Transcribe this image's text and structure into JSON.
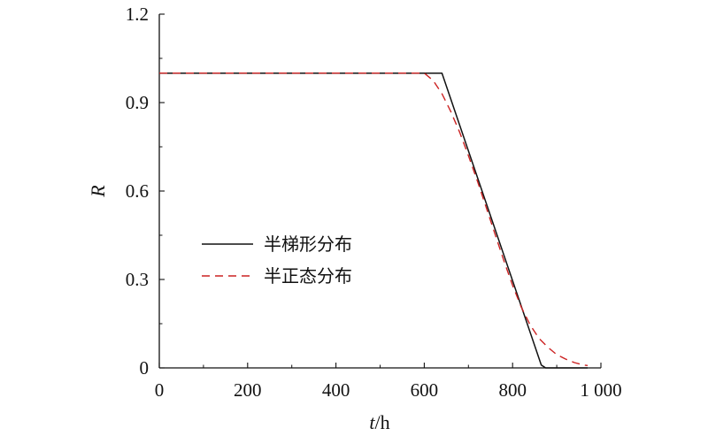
{
  "chart_data": {
    "type": "line",
    "title": "",
    "xlabel": {
      "italic": "t",
      "rest": "/h"
    },
    "ylabel": "R",
    "xlim": [
      0,
      1000
    ],
    "ylim": [
      0,
      1.2
    ],
    "x_ticks": [
      0,
      200,
      400,
      600,
      800,
      1000
    ],
    "x_tick_labels": [
      "0",
      "200",
      "400",
      "600",
      "800",
      "1 000"
    ],
    "y_ticks": [
      0,
      0.3,
      0.6,
      0.9,
      1.2
    ],
    "y_tick_labels": [
      "0",
      "0.3",
      "0.6",
      "0.9",
      "1.2"
    ],
    "grid": false,
    "legend_position": "center-left",
    "series": [
      {
        "name": "半梯形分布",
        "style": "solid",
        "color": "#111111",
        "x": [
          0,
          640,
          865,
          875,
          970
        ],
        "y": [
          1.0,
          1.0,
          0.01,
          0.0,
          0.0
        ]
      },
      {
        "name": "半正态分布",
        "style": "dashed",
        "color": "#cc2222",
        "x": [
          0,
          600,
          620,
          640,
          660,
          680,
          700,
          720,
          740,
          760,
          780,
          800,
          820,
          840,
          860,
          880,
          900,
          920,
          940,
          960,
          970
        ],
        "y": [
          1.0,
          1.0,
          0.975,
          0.93,
          0.87,
          0.8,
          0.72,
          0.635,
          0.545,
          0.455,
          0.365,
          0.28,
          0.205,
          0.145,
          0.1,
          0.07,
          0.045,
          0.03,
          0.018,
          0.01,
          0.008
        ]
      }
    ]
  }
}
